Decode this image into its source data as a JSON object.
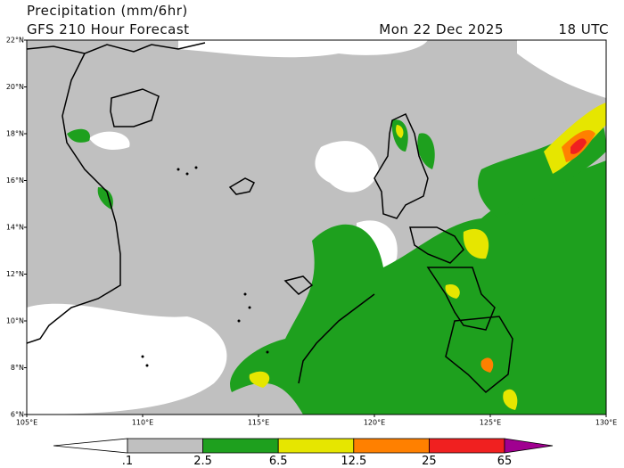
{
  "header": {
    "title": "Precipitation (mm/6hr)",
    "subtitle": "GFS 210 Hour Forecast",
    "date": "Mon 22 Dec 2025",
    "time": "18 UTC"
  },
  "map": {
    "lat_labels": [
      "6°N",
      "8°N",
      "10°N",
      "12°N",
      "14°N",
      "16°N",
      "18°N",
      "20°N",
      "22°N"
    ],
    "lon_labels": [
      "105°E",
      "110°E",
      "115°E",
      "120°E",
      "125°E",
      "130°E"
    ]
  },
  "legend": {
    "labels": [
      ".1",
      "2.5",
      "6.5",
      "12.5",
      "25",
      "65"
    ],
    "colors": [
      "#ffffff",
      "#c0c0c0",
      "#1ea01e",
      "#e6e600",
      "#ff8000",
      "#f02020",
      "#a00090"
    ]
  }
}
